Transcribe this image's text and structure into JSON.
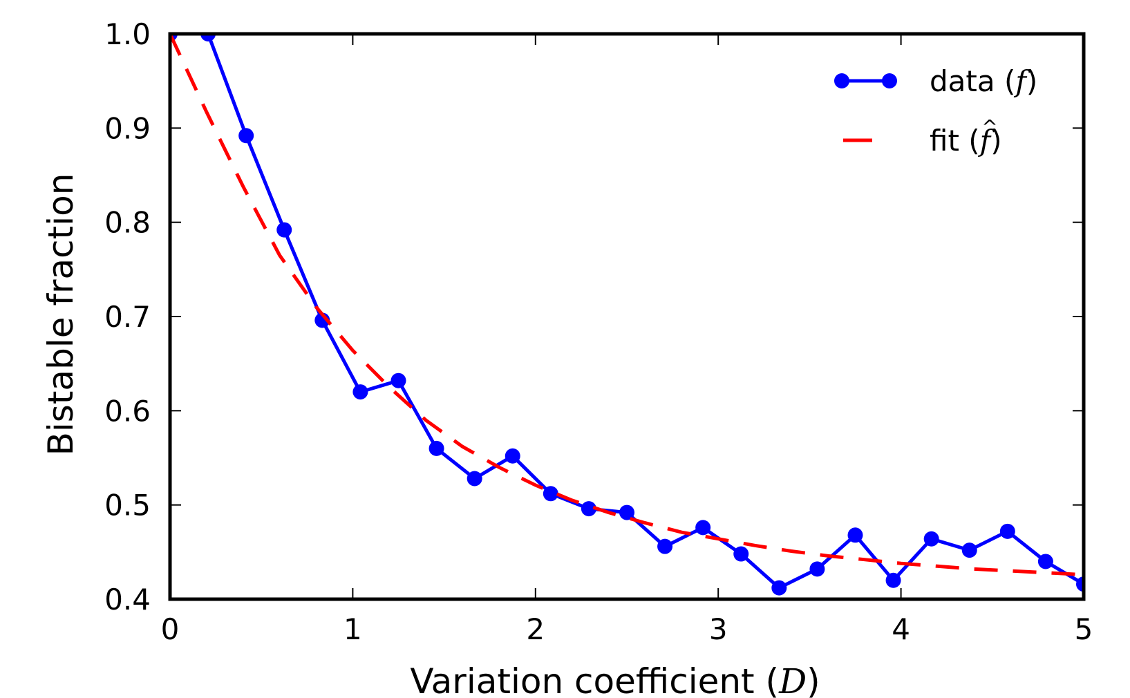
{
  "chart_data": {
    "type": "line",
    "xlabel": "Variation coefficient (",
    "xlabel_symbol": "D",
    "xlabel_close": ")",
    "ylabel": "Bistable fraction",
    "xlim": [
      0,
      5
    ],
    "ylim": [
      0.4,
      1.0
    ],
    "xticks": [
      0,
      1,
      2,
      3,
      4,
      5
    ],
    "xtick_labels": [
      "0",
      "1",
      "2",
      "3",
      "4",
      "5"
    ],
    "yticks": [
      0.4,
      0.5,
      0.6,
      0.7,
      0.8,
      0.9,
      1.0
    ],
    "ytick_labels": [
      "0.4",
      "0.5",
      "0.6",
      "0.7",
      "0.8",
      "0.9",
      "1.0"
    ],
    "legend_position": "upper right",
    "series": [
      {
        "name": "data",
        "legend_label": "data (",
        "legend_symbol": "f",
        "legend_close": ")",
        "style": "solid-markers",
        "color": "#0000ff",
        "x": [
          0.0,
          0.2083,
          0.4167,
          0.625,
          0.8333,
          1.0417,
          1.25,
          1.4583,
          1.6667,
          1.875,
          2.0833,
          2.2917,
          2.5,
          2.7083,
          2.9167,
          3.125,
          3.3333,
          3.5417,
          3.75,
          3.9583,
          4.1667,
          4.375,
          4.5833,
          4.7917,
          5.0
        ],
        "y": [
          1.0,
          1.0,
          0.892,
          0.792,
          0.696,
          0.62,
          0.632,
          0.56,
          0.528,
          0.552,
          0.512,
          0.496,
          0.492,
          0.456,
          0.476,
          0.448,
          0.412,
          0.432,
          0.468,
          0.42,
          0.464,
          0.452,
          0.472,
          0.44,
          0.416
        ]
      },
      {
        "name": "fit",
        "legend_label": "fit (",
        "legend_symbol": "f",
        "legend_close": ")",
        "style": "dashed",
        "color": "#ff0000",
        "x": [
          0.0,
          0.2,
          0.4,
          0.6,
          0.8,
          1.0,
          1.2,
          1.4,
          1.6,
          1.8,
          2.0,
          2.2,
          2.4,
          2.6,
          2.8,
          3.0,
          3.2,
          3.4,
          3.6,
          3.8,
          4.0,
          4.2,
          4.4,
          4.6,
          4.8,
          5.0
        ],
        "y": [
          1.0,
          0.917,
          0.838,
          0.765,
          0.71,
          0.664,
          0.625,
          0.59,
          0.562,
          0.54,
          0.521,
          0.505,
          0.492,
          0.481,
          0.471,
          0.464,
          0.457,
          0.451,
          0.446,
          0.442,
          0.438,
          0.435,
          0.432,
          0.43,
          0.428,
          0.426
        ]
      }
    ]
  }
}
